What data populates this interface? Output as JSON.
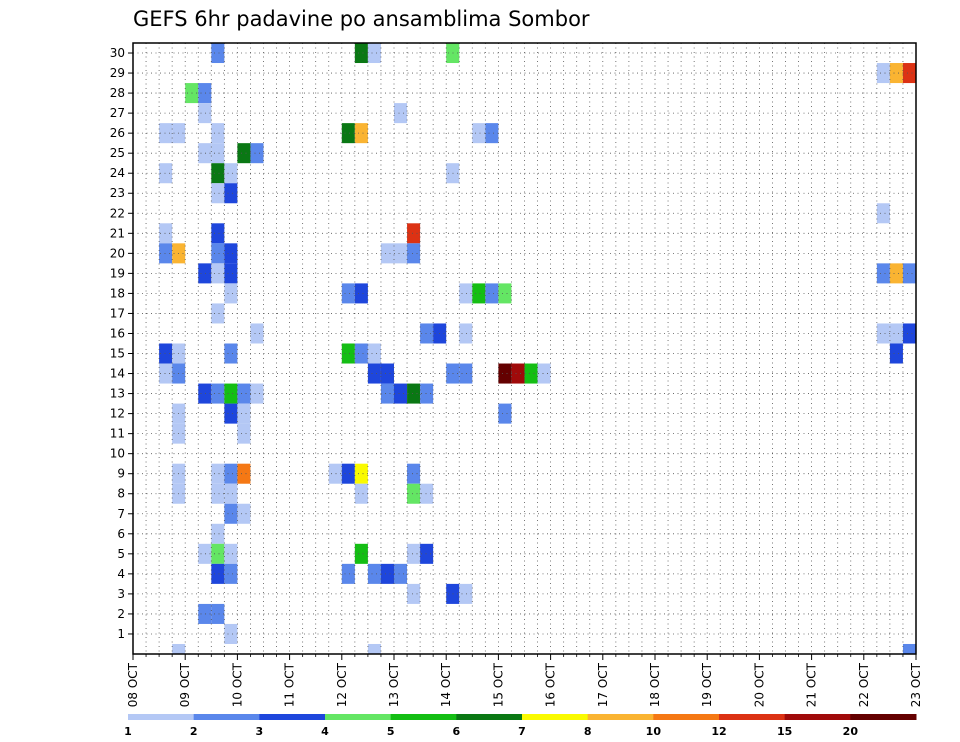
{
  "chart_data": {
    "type": "heatmap",
    "title": "GEFS 6hr padavine po ansamblima Sombor",
    "xlabel": "",
    "ylabel": "",
    "x_ticks": [
      "08 OCT",
      "09 OCT",
      "10 OCT",
      "11 OCT",
      "12 OCT",
      "13 OCT",
      "14 OCT",
      "15 OCT",
      "16 OCT",
      "17 OCT",
      "18 OCT",
      "19 OCT",
      "20 OCT",
      "21 OCT",
      "22 OCT",
      "23 OCT"
    ],
    "y_ticks": [
      1,
      2,
      3,
      4,
      5,
      6,
      7,
      8,
      9,
      10,
      11,
      12,
      13,
      14,
      15,
      16,
      17,
      18,
      19,
      20,
      21,
      22,
      23,
      24,
      25,
      26,
      27,
      28,
      29,
      30
    ],
    "xlim": [
      0,
      60
    ],
    "ylim": [
      0,
      30
    ],
    "grid": true,
    "colorbar": {
      "thresholds": [
        "1",
        "2",
        "3",
        "4",
        "5",
        "6",
        "7",
        "8",
        "10",
        "12",
        "15",
        "20"
      ],
      "colors": [
        "#b4c8f5",
        "#5a87eb",
        "#1e46dc",
        "#64e664",
        "#14be14",
        "#0a7814",
        "#fafa00",
        "#fab432",
        "#f57814",
        "#dc3214",
        "#a00a0a",
        "#640000"
      ]
    },
    "cells_note": "each cell = [member, 6h step since 08 OCT 00Z, colour class 0-11]",
    "cells": [
      [
        30,
        6,
        1
      ],
      [
        30,
        17,
        5
      ],
      [
        30,
        18,
        0
      ],
      [
        30,
        24,
        3
      ],
      [
        29,
        57,
        0
      ],
      [
        29,
        58,
        7
      ],
      [
        29,
        59,
        9
      ],
      [
        28,
        4,
        3
      ],
      [
        28,
        5,
        1
      ],
      [
        27,
        5,
        0
      ],
      [
        27,
        20,
        0
      ],
      [
        26,
        2,
        0
      ],
      [
        26,
        3,
        0
      ],
      [
        26,
        6,
        0
      ],
      [
        26,
        16,
        5
      ],
      [
        26,
        17,
        7
      ],
      [
        26,
        26,
        0
      ],
      [
        26,
        27,
        1
      ],
      [
        25,
        5,
        0
      ],
      [
        25,
        6,
        0
      ],
      [
        25,
        8,
        5
      ],
      [
        25,
        9,
        1
      ],
      [
        24,
        2,
        0
      ],
      [
        24,
        6,
        5
      ],
      [
        24,
        7,
        0
      ],
      [
        24,
        24,
        0
      ],
      [
        23,
        6,
        0
      ],
      [
        23,
        7,
        2
      ],
      [
        22,
        57,
        0
      ],
      [
        21,
        2,
        0
      ],
      [
        21,
        6,
        2
      ],
      [
        21,
        21,
        9
      ],
      [
        20,
        2,
        1
      ],
      [
        20,
        3,
        7
      ],
      [
        20,
        6,
        1
      ],
      [
        20,
        7,
        2
      ],
      [
        20,
        19,
        0
      ],
      [
        20,
        20,
        0
      ],
      [
        20,
        21,
        1
      ],
      [
        19,
        5,
        2
      ],
      [
        19,
        6,
        0
      ],
      [
        19,
        7,
        2
      ],
      [
        19,
        57,
        1
      ],
      [
        19,
        58,
        7
      ],
      [
        19,
        59,
        1
      ],
      [
        18,
        7,
        0
      ],
      [
        18,
        16,
        1
      ],
      [
        18,
        17,
        2
      ],
      [
        18,
        25,
        0
      ],
      [
        18,
        26,
        4
      ],
      [
        18,
        27,
        1
      ],
      [
        18,
        28,
        3
      ],
      [
        17,
        6,
        0
      ],
      [
        16,
        9,
        0
      ],
      [
        16,
        22,
        1
      ],
      [
        16,
        23,
        2
      ],
      [
        16,
        25,
        0
      ],
      [
        16,
        57,
        0
      ],
      [
        16,
        58,
        0
      ],
      [
        16,
        59,
        2
      ],
      [
        15,
        2,
        2
      ],
      [
        15,
        3,
        0
      ],
      [
        15,
        7,
        1
      ],
      [
        15,
        16,
        4
      ],
      [
        15,
        17,
        1
      ],
      [
        15,
        18,
        0
      ],
      [
        15,
        58,
        2
      ],
      [
        14,
        2,
        0
      ],
      [
        14,
        3,
        1
      ],
      [
        14,
        18,
        2
      ],
      [
        14,
        19,
        2
      ],
      [
        14,
        24,
        1
      ],
      [
        14,
        25,
        1
      ],
      [
        14,
        28,
        11
      ],
      [
        14,
        29,
        10
      ],
      [
        14,
        30,
        4
      ],
      [
        14,
        31,
        0
      ],
      [
        13,
        5,
        2
      ],
      [
        13,
        6,
        1
      ],
      [
        13,
        7,
        4
      ],
      [
        13,
        8,
        1
      ],
      [
        13,
        9,
        0
      ],
      [
        13,
        19,
        1
      ],
      [
        13,
        20,
        2
      ],
      [
        13,
        21,
        5
      ],
      [
        13,
        22,
        1
      ],
      [
        12,
        3,
        0
      ],
      [
        12,
        7,
        2
      ],
      [
        12,
        8,
        0
      ],
      [
        12,
        28,
        1
      ],
      [
        11,
        3,
        0
      ],
      [
        11,
        8,
        0
      ],
      [
        9,
        3,
        0
      ],
      [
        9,
        6,
        0
      ],
      [
        9,
        7,
        1
      ],
      [
        9,
        8,
        8
      ],
      [
        9,
        15,
        0
      ],
      [
        9,
        16,
        2
      ],
      [
        9,
        17,
        6
      ],
      [
        9,
        21,
        1
      ],
      [
        8,
        3,
        0
      ],
      [
        8,
        6,
        0
      ],
      [
        8,
        7,
        0
      ],
      [
        8,
        17,
        0
      ],
      [
        8,
        21,
        3
      ],
      [
        8,
        22,
        0
      ],
      [
        7,
        7,
        1
      ],
      [
        7,
        8,
        0
      ],
      [
        6,
        6,
        0
      ],
      [
        5,
        5,
        0
      ],
      [
        5,
        6,
        3
      ],
      [
        5,
        7,
        0
      ],
      [
        5,
        17,
        4
      ],
      [
        5,
        21,
        0
      ],
      [
        5,
        22,
        2
      ],
      [
        4,
        6,
        2
      ],
      [
        4,
        7,
        1
      ],
      [
        4,
        16,
        1
      ],
      [
        4,
        18,
        1
      ],
      [
        4,
        19,
        2
      ],
      [
        4,
        20,
        1
      ],
      [
        3,
        21,
        0
      ],
      [
        3,
        24,
        2
      ],
      [
        3,
        25,
        0
      ],
      [
        2,
        5,
        1
      ],
      [
        2,
        6,
        1
      ],
      [
        1,
        7,
        0
      ],
      [
        0,
        3,
        0
      ],
      [
        0,
        18,
        0
      ],
      [
        0,
        59,
        1
      ]
    ]
  }
}
